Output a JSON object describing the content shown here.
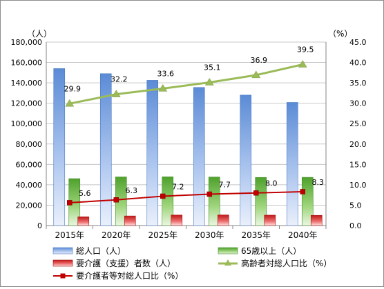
{
  "chart_data": {
    "type": "bar",
    "categories": [
      "2015年",
      "2020年",
      "2025年",
      "2030年",
      "2035年",
      "2040年"
    ],
    "y_left": {
      "unit": "（人）",
      "range": [
        0,
        180000
      ],
      "ticks": [
        "0",
        "20,000",
        "40,000",
        "60,000",
        "80,000",
        "100,000",
        "120,000",
        "140,000",
        "160,000",
        "180,000"
      ]
    },
    "y_right": {
      "unit": "（%）",
      "range": [
        0,
        45
      ],
      "ticks": [
        "0.0",
        "5.0",
        "10.0",
        "15.0",
        "20.0",
        "25.0",
        "30.0",
        "35.0",
        "40.0",
        "45.0"
      ]
    },
    "grid": true,
    "legend_position": "bottom",
    "series": [
      {
        "name": "総人口（人）",
        "kind": "bar",
        "axis": "left",
        "color": "#7fa6e0",
        "values": [
          154000,
          149000,
          142500,
          135500,
          128000,
          120800
        ]
      },
      {
        "name": "65歳以上（人）",
        "kind": "bar",
        "axis": "left",
        "color": "#7fc24e",
        "values": [
          46000,
          47700,
          47800,
          47600,
          47200,
          47300
        ]
      },
      {
        "name": "要介護（支援）者数（人）",
        "kind": "bar",
        "axis": "left",
        "color": "#e03030",
        "values": [
          8600,
          9400,
          10300,
          10400,
          10200,
          10000
        ]
      },
      {
        "name": "高齢者対総人口比（%）",
        "kind": "line",
        "axis": "right",
        "color": "#9bbb59",
        "marker": "triangle",
        "values": [
          29.9,
          32.2,
          33.6,
          35.1,
          36.9,
          39.5
        ],
        "labels": [
          "29.9",
          "32.2",
          "33.6",
          "35.1",
          "36.9",
          "39.5"
        ]
      },
      {
        "name": "要介護者等対総人口比（%）",
        "kind": "line",
        "axis": "right",
        "color": "#c00000",
        "marker": "square",
        "values": [
          5.6,
          6.3,
          7.2,
          7.7,
          8.0,
          8.3
        ],
        "labels": [
          "5.6",
          "6.3",
          "7.2",
          "7.7",
          "8.0",
          "8.3"
        ]
      }
    ]
  }
}
